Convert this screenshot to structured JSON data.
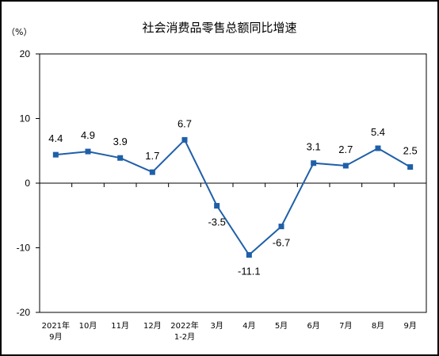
{
  "chart_data": {
    "type": "line",
    "title": "社会消费品零售总额同比增速",
    "unit_label": "（%）",
    "xlabel": "",
    "ylabel": "",
    "ylim": [
      -20,
      20
    ],
    "yticks": [
      "20",
      "10",
      "0",
      "-10",
      "-20"
    ],
    "ytick_values": [
      20,
      10,
      0,
      -10,
      -20
    ],
    "categories": [
      [
        "2021年",
        "9月"
      ],
      [
        "10月"
      ],
      [
        "11月"
      ],
      [
        "12月"
      ],
      [
        "2022年",
        "1-2月"
      ],
      [
        "3月"
      ],
      [
        "4月"
      ],
      [
        "5月"
      ],
      [
        "6月"
      ],
      [
        "7月"
      ],
      [
        "8月"
      ],
      [
        "9月"
      ]
    ],
    "values": [
      4.4,
      4.9,
      3.9,
      1.7,
      6.7,
      -3.5,
      -11.1,
      -6.7,
      3.1,
      2.7,
      5.4,
      2.5
    ],
    "data_labels": [
      "4.4",
      "4.9",
      "3.9",
      "1.7",
      "6.7",
      "-3.5",
      "-11.1",
      "-6.7",
      "3.1",
      "2.7",
      "5.4",
      "2.5"
    ],
    "label_position": [
      "above",
      "above",
      "above",
      "above",
      "above",
      "below",
      "below",
      "below",
      "above",
      "above",
      "above",
      "above"
    ],
    "line_color": "#1f5fa8",
    "marker_color": "#1f5fa8",
    "grid": false,
    "legend": "none"
  }
}
